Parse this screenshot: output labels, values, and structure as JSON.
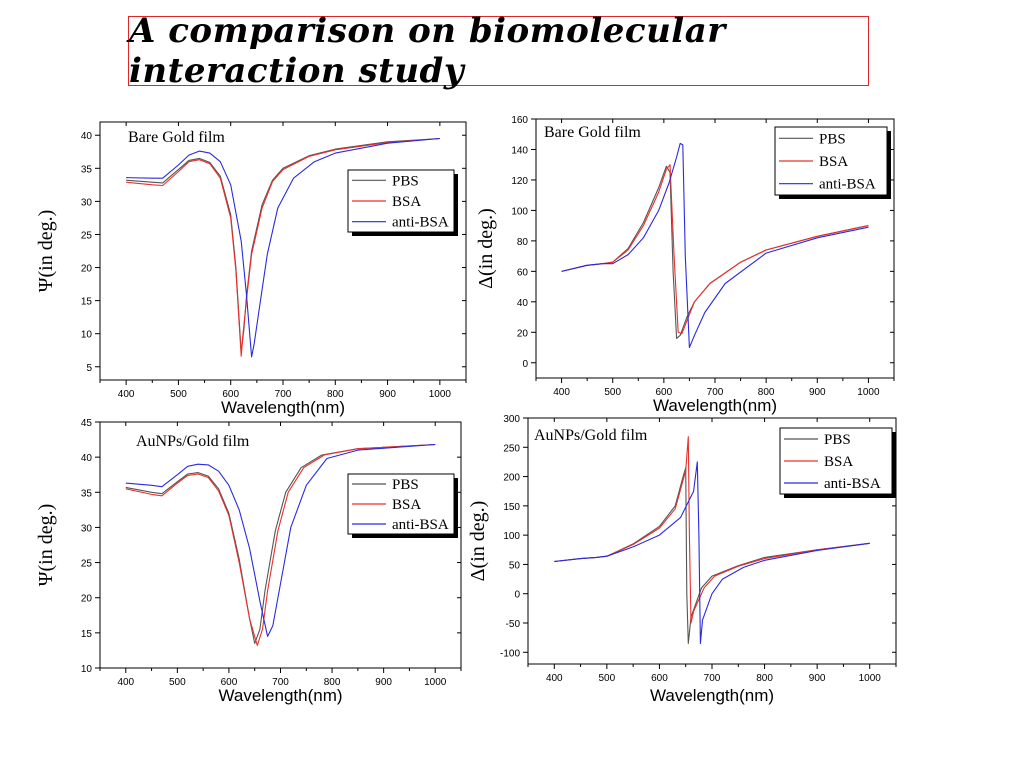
{
  "slide": {
    "title": "A comparison on biomolecular interaction study"
  },
  "colors": {
    "PBS": "#555555",
    "BSA": "#e8302c",
    "anti-BSA": "#2a2ae0",
    "title_border": "#e0262a"
  },
  "chart_data": [
    {
      "type": "line",
      "annotation": "Bare Gold film",
      "xlabel": "Wavelength(nm)",
      "ylabel": "Ψ(in deg.)",
      "xlim": [
        350,
        1050
      ],
      "ylim": [
        3,
        42
      ],
      "xticks": [
        400,
        500,
        600,
        700,
        800,
        900,
        1000
      ],
      "yticks": [
        5,
        10,
        15,
        20,
        25,
        30,
        35,
        40
      ],
      "legend": "top-right",
      "series": [
        {
          "name": "PBS",
          "x": [
            400,
            450,
            470,
            500,
            520,
            540,
            560,
            580,
            600,
            610,
            620,
            625,
            630,
            640,
            660,
            680,
            700,
            750,
            800,
            900,
            1000
          ],
          "y": [
            33.2,
            32.9,
            32.8,
            34.8,
            36.2,
            36.5,
            35.9,
            33.8,
            28.0,
            20.0,
            7.2,
            10.5,
            15.5,
            22.5,
            29.5,
            33.2,
            35.0,
            36.9,
            37.9,
            39.0,
            39.5
          ]
        },
        {
          "name": "BSA",
          "x": [
            400,
            450,
            470,
            500,
            520,
            540,
            560,
            580,
            600,
            610,
            620,
            623,
            630,
            640,
            660,
            680,
            700,
            750,
            800,
            900,
            1000
          ],
          "y": [
            32.9,
            32.5,
            32.4,
            34.5,
            36.0,
            36.3,
            35.7,
            33.5,
            27.5,
            19.5,
            6.6,
            9.5,
            15.0,
            22.0,
            29.0,
            33.0,
            34.8,
            36.8,
            37.8,
            38.9,
            39.5
          ]
        },
        {
          "name": "anti-BSA",
          "x": [
            400,
            450,
            470,
            500,
            520,
            540,
            560,
            580,
            600,
            620,
            630,
            640,
            645,
            655,
            670,
            690,
            720,
            760,
            800,
            900,
            1000
          ],
          "y": [
            33.6,
            33.5,
            33.5,
            35.5,
            37.0,
            37.6,
            37.3,
            36.0,
            32.5,
            24.0,
            16.0,
            6.5,
            8.5,
            14.0,
            22.0,
            29.0,
            33.5,
            36.0,
            37.3,
            38.8,
            39.5
          ]
        }
      ]
    },
    {
      "type": "line",
      "annotation": "Bare Gold film",
      "xlabel": "Wavelength(nm)",
      "ylabel": "Δ(in deg.)",
      "xlim": [
        350,
        1050
      ],
      "ylim": [
        -10,
        160
      ],
      "xticks": [
        400,
        500,
        600,
        700,
        800,
        900,
        1000
      ],
      "yticks": [
        0,
        20,
        40,
        60,
        80,
        100,
        120,
        140,
        160
      ],
      "legend": "top-right",
      "series": [
        {
          "name": "PBS",
          "x": [
            400,
            450,
            480,
            500,
            530,
            560,
            590,
            605,
            612,
            618,
            625,
            632,
            645,
            660,
            690,
            750,
            800,
            900,
            1000
          ],
          "y": [
            60,
            64,
            65,
            66,
            75,
            92,
            115,
            129,
            125,
            60,
            16,
            18,
            30,
            40,
            52,
            66,
            74,
            83,
            90
          ]
        },
        {
          "name": "BSA",
          "x": [
            400,
            450,
            480,
            500,
            530,
            560,
            590,
            605,
            612,
            620,
            628,
            635,
            648,
            660,
            690,
            750,
            800,
            900,
            1000
          ],
          "y": [
            60,
            64,
            65,
            66,
            74,
            90,
            112,
            127,
            130,
            70,
            20,
            19,
            30,
            40,
            52,
            66,
            74,
            83,
            90
          ]
        },
        {
          "name": "anti-BSA",
          "x": [
            400,
            450,
            480,
            500,
            530,
            560,
            590,
            610,
            625,
            632,
            637,
            642,
            650,
            660,
            680,
            720,
            800,
            900,
            1000
          ],
          "y": [
            60,
            64,
            65,
            65,
            71,
            82,
            100,
            118,
            135,
            144,
            143,
            70,
            10,
            18,
            33,
            52,
            72,
            82,
            89
          ]
        }
      ]
    },
    {
      "type": "line",
      "annotation": "AuNPs/Gold film",
      "xlabel": "Wavelength(nm)",
      "ylabel": "Ψ(in deg.)",
      "xlim": [
        350,
        1050
      ],
      "ylim": [
        10,
        45
      ],
      "xticks": [
        400,
        500,
        600,
        700,
        800,
        900,
        1000
      ],
      "yticks": [
        10,
        15,
        20,
        25,
        30,
        35,
        40,
        45
      ],
      "legend": "top-right",
      "series": [
        {
          "name": "PBS",
          "x": [
            400,
            450,
            470,
            500,
            520,
            540,
            560,
            580,
            600,
            620,
            640,
            650,
            660,
            670,
            690,
            710,
            740,
            780,
            850,
            1000
          ],
          "y": [
            35.7,
            35.0,
            34.8,
            36.5,
            37.6,
            37.8,
            37.3,
            35.5,
            32.0,
            25.5,
            17.0,
            13.5,
            15.5,
            21.0,
            29.5,
            35.0,
            38.5,
            40.3,
            41.2,
            41.8
          ]
        },
        {
          "name": "BSA",
          "x": [
            400,
            450,
            470,
            500,
            520,
            540,
            560,
            580,
            600,
            620,
            640,
            655,
            665,
            675,
            695,
            715,
            745,
            785,
            850,
            1000
          ],
          "y": [
            35.5,
            34.7,
            34.5,
            36.3,
            37.4,
            37.6,
            37.1,
            35.2,
            31.7,
            25.0,
            17.0,
            13.2,
            15.5,
            21.0,
            29.5,
            35.0,
            38.5,
            40.3,
            41.2,
            41.8
          ]
        },
        {
          "name": "anti-BSA",
          "x": [
            400,
            450,
            470,
            500,
            520,
            540,
            560,
            580,
            600,
            620,
            640,
            660,
            675,
            685,
            700,
            720,
            750,
            790,
            850,
            1000
          ],
          "y": [
            36.3,
            36.0,
            35.8,
            37.5,
            38.7,
            39.0,
            38.9,
            38.0,
            36.0,
            32.5,
            27.0,
            19.5,
            14.5,
            16.0,
            22.0,
            30.0,
            36.0,
            39.8,
            41.0,
            41.8
          ]
        }
      ]
    },
    {
      "type": "line",
      "annotation": "AuNPs/Gold film",
      "xlabel": "Wavelength(nm)",
      "ylabel": "Δ(in deg.)",
      "xlim": [
        350,
        1050
      ],
      "ylim": [
        -120,
        300
      ],
      "xticks": [
        400,
        500,
        600,
        700,
        800,
        900,
        1000
      ],
      "yticks": [
        -100,
        -50,
        0,
        50,
        100,
        150,
        200,
        250,
        300
      ],
      "legend": "top-right",
      "series": [
        {
          "name": "PBS",
          "x": [
            400,
            450,
            480,
            500,
            550,
            600,
            630,
            645,
            650,
            652,
            655,
            660,
            680,
            700,
            750,
            800,
            900,
            1000
          ],
          "y": [
            55,
            60,
            62,
            64,
            85,
            115,
            150,
            200,
            215,
            0,
            -85,
            -40,
            10,
            30,
            48,
            62,
            75,
            86
          ]
        },
        {
          "name": "BSA",
          "x": [
            400,
            450,
            480,
            500,
            550,
            600,
            630,
            650,
            655,
            657,
            660,
            665,
            685,
            705,
            750,
            800,
            900,
            1000
          ],
          "y": [
            55,
            60,
            62,
            64,
            84,
            112,
            145,
            210,
            268,
            100,
            -50,
            -30,
            10,
            30,
            47,
            60,
            75,
            86
          ]
        },
        {
          "name": "anti-BSA",
          "x": [
            400,
            450,
            480,
            500,
            550,
            600,
            640,
            665,
            672,
            675,
            678,
            682,
            700,
            720,
            760,
            800,
            900,
            1000
          ],
          "y": [
            55,
            60,
            62,
            64,
            80,
            100,
            130,
            175,
            225,
            100,
            -85,
            -45,
            0,
            25,
            45,
            57,
            74,
            86
          ]
        }
      ]
    }
  ]
}
